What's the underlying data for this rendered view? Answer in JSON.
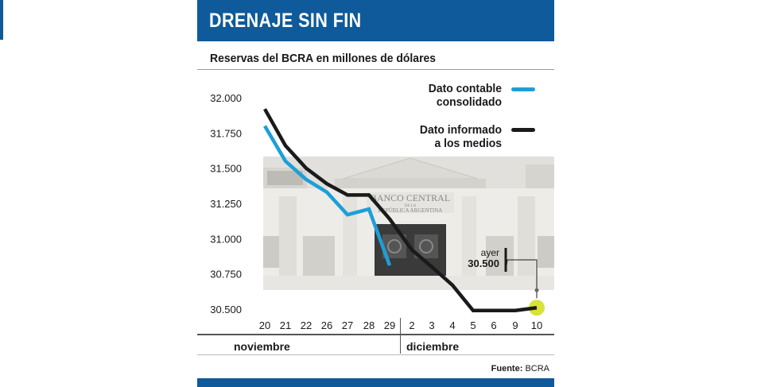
{
  "header": {
    "title": "DRENAJE SIN FIN"
  },
  "subtitle": "Reservas del BCRA en millones de dólares",
  "legend": {
    "contable": {
      "line1": "Dato contable",
      "line2": "consolidado"
    },
    "informado": {
      "line1": "Dato informado",
      "line2": "a los medios"
    }
  },
  "callout": {
    "label": "ayer",
    "value": "30.500"
  },
  "months": {
    "nov": "noviembre",
    "dic": "diciembre"
  },
  "source": {
    "label": "Fuente:",
    "value": "BCRA"
  },
  "photo_text": {
    "line1": "BANCO CENTRAL",
    "line2": "DE LA",
    "line3": "REPÚBLICA ARGENTINA"
  },
  "colors": {
    "brand": "#0e5a9a",
    "contable": "#1d9fd8",
    "informado": "#1a1a1a",
    "highlight": "#d8e23a"
  },
  "chart_data": {
    "type": "line",
    "title": "Reservas del BCRA en millones de dólares",
    "categories": [
      "20",
      "21",
      "22",
      "26",
      "27",
      "28",
      "29",
      "2",
      "3",
      "4",
      "5",
      "6",
      "9",
      "10"
    ],
    "y_ticks": [
      "32.000",
      "31.750",
      "31.500",
      "31.250",
      "31.000",
      "30.750",
      "30.500"
    ],
    "y_tick_values": [
      32000,
      31750,
      31500,
      31250,
      31000,
      30750,
      30500
    ],
    "ylim": [
      30500,
      32000
    ],
    "grid": false,
    "legend_position": "top-right",
    "series": [
      {
        "name": "Dato contable consolidado",
        "color": "#1d9fd8",
        "values": [
          31800,
          31550,
          31420,
          31330,
          31170,
          31210,
          30810,
          null,
          null,
          null,
          null,
          null,
          null,
          null
        ]
      },
      {
        "name": "Dato informado a los medios",
        "color": "#1a1a1a",
        "values": [
          31920,
          31660,
          31500,
          31390,
          31310,
          31310,
          31140,
          30920,
          30800,
          30670,
          30490,
          30490,
          30490,
          30510
        ]
      }
    ]
  }
}
